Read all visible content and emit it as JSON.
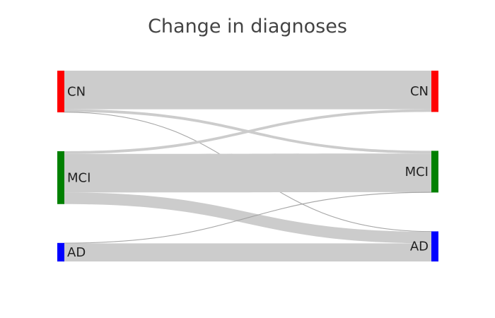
{
  "chart_data": {
    "type": "sankey",
    "title": "Change in diagnoses",
    "nodes": [
      {
        "id": "CN_before",
        "label": "CN",
        "color": "#ff0000",
        "column": "left"
      },
      {
        "id": "MCI_before",
        "label": "MCI",
        "color": "#008000",
        "column": "left"
      },
      {
        "id": "AD_before",
        "label": "AD",
        "color": "#0000ff",
        "column": "left"
      },
      {
        "id": "CN_after",
        "label": "CN",
        "color": "#ff0000",
        "column": "right"
      },
      {
        "id": "MCI_after",
        "label": "MCI",
        "color": "#008000",
        "column": "right"
      },
      {
        "id": "AD_after",
        "label": "AD",
        "color": "#0000ff",
        "column": "right"
      }
    ],
    "links": [
      {
        "source": "CN_before",
        "target": "CN_after",
        "value": 100
      },
      {
        "source": "CN_before",
        "target": "MCI_after",
        "value": 7
      },
      {
        "source": "CN_before",
        "target": "AD_after",
        "value": 1
      },
      {
        "source": "MCI_before",
        "target": "CN_after",
        "value": 7
      },
      {
        "source": "MCI_before",
        "target": "MCI_after",
        "value": 100
      },
      {
        "source": "MCI_before",
        "target": "AD_after",
        "value": 30
      },
      {
        "source": "AD_before",
        "target": "MCI_after",
        "value": 1
      },
      {
        "source": "AD_before",
        "target": "AD_after",
        "value": 47
      }
    ],
    "link_color": "#cccccc"
  }
}
